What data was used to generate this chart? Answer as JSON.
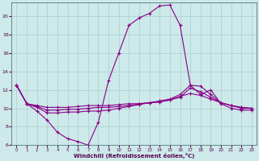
{
  "xlabel": "Windchill (Refroidissement éolien,°C)",
  "background_color": "#cde9e9",
  "line_color": "#880088",
  "grid_color": "#aacfcf",
  "xlim": [
    -0.5,
    23.5
  ],
  "ylim": [
    6,
    21.5
  ],
  "yticks": [
    6,
    8,
    10,
    12,
    14,
    16,
    18,
    20
  ],
  "xticks": [
    0,
    1,
    2,
    3,
    4,
    5,
    6,
    7,
    8,
    9,
    10,
    11,
    12,
    13,
    14,
    15,
    16,
    17,
    18,
    19,
    20,
    21,
    22,
    23
  ],
  "series": [
    [
      12.5,
      10.5,
      9.7,
      8.7,
      7.4,
      6.7,
      6.4,
      6.0,
      8.5,
      13.0,
      16.0,
      19.0,
      19.8,
      20.3,
      21.1,
      21.2,
      19.0,
      12.5,
      11.5,
      12.0,
      10.5,
      10.0,
      9.8,
      9.8
    ],
    [
      12.5,
      10.5,
      10.1,
      9.5,
      9.5,
      9.6,
      9.6,
      9.7,
      9.7,
      9.8,
      10.0,
      10.2,
      10.4,
      10.6,
      10.8,
      11.0,
      11.5,
      12.5,
      12.4,
      11.5,
      10.6,
      10.3,
      10.0,
      10.0
    ],
    [
      12.5,
      10.5,
      10.2,
      9.8,
      9.8,
      9.9,
      9.9,
      10.0,
      10.1,
      10.1,
      10.2,
      10.3,
      10.5,
      10.6,
      10.7,
      10.9,
      11.2,
      12.2,
      11.8,
      11.2,
      10.6,
      10.3,
      10.1,
      10.0
    ],
    [
      12.5,
      10.5,
      10.3,
      10.1,
      10.1,
      10.1,
      10.2,
      10.3,
      10.3,
      10.3,
      10.4,
      10.5,
      10.5,
      10.6,
      10.7,
      10.9,
      11.3,
      11.6,
      11.4,
      11.0,
      10.6,
      10.3,
      10.1,
      10.0
    ]
  ]
}
